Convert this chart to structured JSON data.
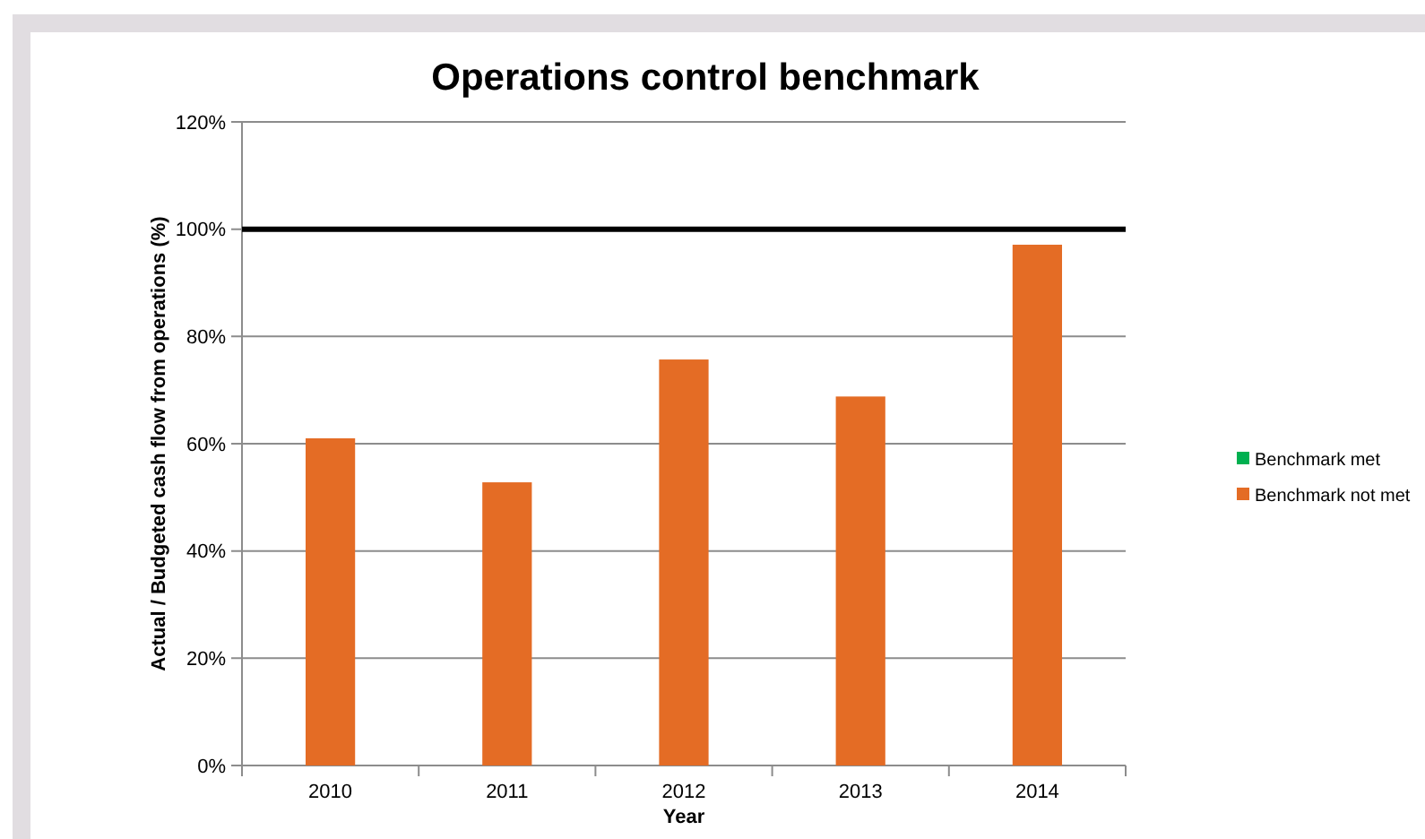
{
  "chart_data": {
    "type": "bar",
    "title": "Operations control benchmark",
    "xlabel": "Year",
    "ylabel": "Actual / Budgeted cash flow from operations (%)",
    "categories": [
      "2010",
      "2011",
      "2012",
      "2013",
      "2014"
    ],
    "series": [
      {
        "name": "Benchmark met",
        "color": "#00b050",
        "values": [
          null,
          null,
          null,
          null,
          null
        ]
      },
      {
        "name": "Benchmark not met",
        "color": "#e46c25",
        "values": [
          61,
          52.8,
          75.7,
          68.8,
          97.1
        ]
      }
    ],
    "ylim": [
      0,
      120
    ],
    "yticks": [
      {
        "value": 0,
        "label": "0%"
      },
      {
        "value": 20,
        "label": "20%"
      },
      {
        "value": 40,
        "label": "40%"
      },
      {
        "value": 60,
        "label": "60%"
      },
      {
        "value": 80,
        "label": "80%"
      },
      {
        "value": 100,
        "label": "100%"
      },
      {
        "value": 120,
        "label": "120%"
      }
    ],
    "ref_lines": [
      {
        "axis": "y",
        "value": 100,
        "color": "#000000"
      }
    ],
    "grid": "y",
    "legend": "right"
  }
}
